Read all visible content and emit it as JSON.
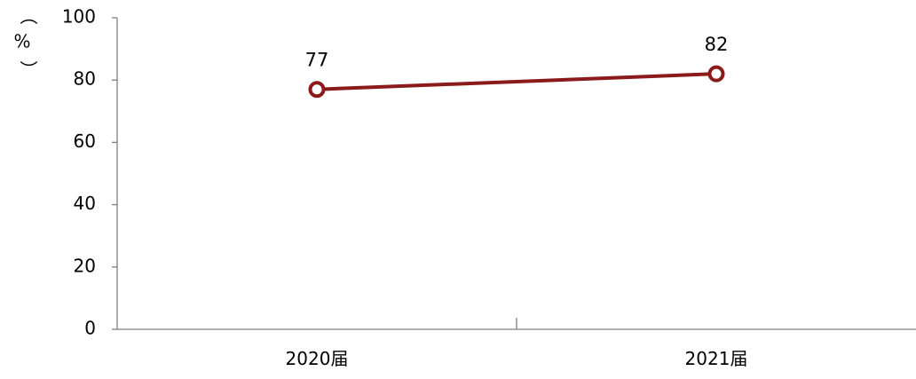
{
  "chart_data": {
    "type": "line",
    "categories": [
      "2020届",
      "2021届"
    ],
    "series": [
      {
        "values": [
          77,
          82
        ],
        "color": "#8B1A1A"
      }
    ],
    "ylabel_chars": [
      "（",
      "%",
      "）"
    ],
    "ylim": [
      0,
      100
    ],
    "yticks": [
      "0",
      "20",
      "40",
      "60",
      "80",
      "100"
    ],
    "grid": false,
    "data_labels": [
      "77",
      "82"
    ]
  }
}
